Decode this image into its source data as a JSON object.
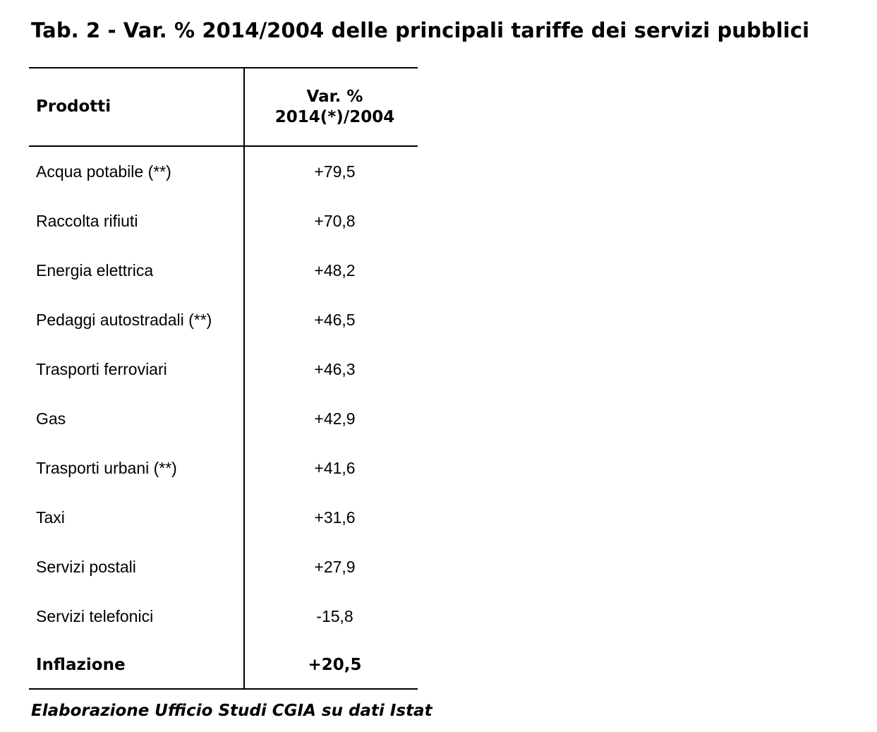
{
  "title": "Tab. 2 - Var. % 2014/2004 delle principali tariffe dei servizi pubblici",
  "table": {
    "header": {
      "col1": "Prodotti",
      "col2_line1": "Var. %",
      "col2_line2": "2014(*)/2004"
    },
    "rows": [
      {
        "product": "Acqua potabile (**)",
        "value": "+79,5"
      },
      {
        "product": "Raccolta rifiuti",
        "value": "+70,8"
      },
      {
        "product": "Energia elettrica",
        "value": "+48,2"
      },
      {
        "product": "Pedaggi autostradali (**)",
        "value": "+46,5"
      },
      {
        "product": "Trasporti ferroviari",
        "value": "+46,3"
      },
      {
        "product": "Gas",
        "value": "+42,9"
      },
      {
        "product": "Trasporti urbani (**)",
        "value": "+41,6"
      },
      {
        "product": "Taxi",
        "value": "+31,6"
      },
      {
        "product": "Servizi postali",
        "value": "+27,9"
      },
      {
        "product": "Servizi telefonici",
        "value": "-15,8"
      }
    ],
    "total": {
      "product": "Inflazione",
      "value": "+20,5"
    }
  },
  "source": "Elaborazione Ufficio Studi CGIA su dati Istat"
}
